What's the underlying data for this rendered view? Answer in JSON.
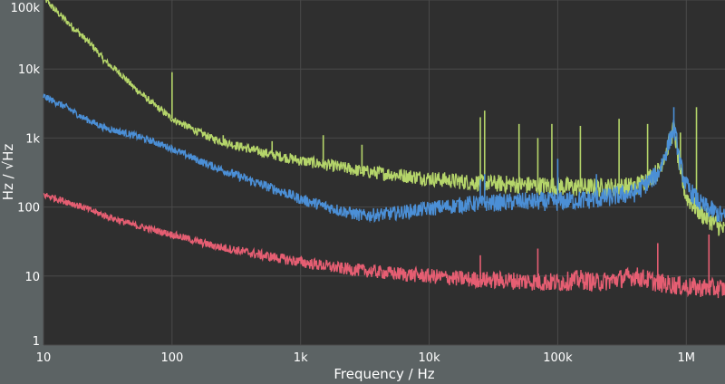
{
  "colors": {
    "page_background": "#5c6364",
    "plot_background": "#2f2f2f",
    "gridline": "#4a4a4a",
    "text": "#ffffff"
  },
  "chart_data": {
    "type": "line",
    "title": "",
    "xlabel": "Frequency / Hz",
    "ylabel": "Hz / √Hz",
    "xscale": "log",
    "yscale": "log",
    "xlim": [
      10,
      2000000
    ],
    "ylim": [
      1,
      100000
    ],
    "grid": true,
    "legend": "none",
    "x_ticks": [
      {
        "value": 10,
        "label": "10"
      },
      {
        "value": 100,
        "label": "100"
      },
      {
        "value": 1000,
        "label": "1k"
      },
      {
        "value": 10000,
        "label": "10k"
      },
      {
        "value": 100000,
        "label": "100k"
      },
      {
        "value": 1000000,
        "label": "1M"
      }
    ],
    "y_ticks": [
      {
        "value": 1,
        "label": "1"
      },
      {
        "value": 10,
        "label": "10"
      },
      {
        "value": 100,
        "label": "100"
      },
      {
        "value": 1000,
        "label": "1k"
      },
      {
        "value": 10000,
        "label": "10k"
      },
      {
        "value": 100000,
        "label": "100k"
      }
    ],
    "series": [
      {
        "color": "#b5d56a",
        "points": [
          [
            10,
            110000
          ],
          [
            12,
            75000
          ],
          [
            15,
            50000
          ],
          [
            20,
            30000
          ],
          [
            25,
            20000
          ],
          [
            30,
            13000
          ],
          [
            40,
            8500
          ],
          [
            50,
            5500
          ],
          [
            70,
            3200
          ],
          [
            100,
            1900
          ],
          [
            150,
            1300
          ],
          [
            200,
            1000
          ],
          [
            300,
            800
          ],
          [
            500,
            620
          ],
          [
            1000,
            470
          ],
          [
            2000,
            380
          ],
          [
            3000,
            330
          ],
          [
            5000,
            300
          ],
          [
            10000,
            260
          ],
          [
            20000,
            230
          ],
          [
            50000,
            210
          ],
          [
            100000,
            200
          ],
          [
            200000,
            190
          ],
          [
            400000,
            200
          ],
          [
            600000,
            320
          ],
          [
            700000,
            650
          ],
          [
            800000,
            1400
          ],
          [
            850000,
            650
          ],
          [
            900000,
            300
          ],
          [
            1000000,
            140
          ],
          [
            1300000,
            80
          ],
          [
            2000000,
            45
          ]
        ],
        "spikes": [
          [
            100,
            9000
          ],
          [
            250,
            1100
          ],
          [
            600,
            900
          ],
          [
            1500,
            1100
          ],
          [
            3000,
            800
          ],
          [
            25000,
            2000
          ],
          [
            27000,
            2500
          ],
          [
            50000,
            1600
          ],
          [
            70000,
            1000
          ],
          [
            90000,
            1600
          ],
          [
            150000,
            1500
          ],
          [
            300000,
            1900
          ],
          [
            500000,
            1600
          ],
          [
            900000,
            1200
          ],
          [
            1200000,
            2800
          ]
        ]
      },
      {
        "color": "#4b8fd6",
        "points": [
          [
            10,
            4000
          ],
          [
            15,
            2800
          ],
          [
            20,
            2000
          ],
          [
            30,
            1400
          ],
          [
            50,
            1100
          ],
          [
            70,
            900
          ],
          [
            100,
            700
          ],
          [
            150,
            500
          ],
          [
            200,
            400
          ],
          [
            300,
            300
          ],
          [
            500,
            210
          ],
          [
            700,
            170
          ],
          [
            1000,
            130
          ],
          [
            2000,
            90
          ],
          [
            3000,
            75
          ],
          [
            5000,
            80
          ],
          [
            10000,
            95
          ],
          [
            20000,
            110
          ],
          [
            50000,
            120
          ],
          [
            100000,
            120
          ],
          [
            200000,
            130
          ],
          [
            400000,
            160
          ],
          [
            600000,
            300
          ],
          [
            700000,
            650
          ],
          [
            800000,
            1400
          ],
          [
            850000,
            800
          ],
          [
            900000,
            400
          ],
          [
            1000000,
            200
          ],
          [
            1300000,
            110
          ],
          [
            2000000,
            70
          ]
        ],
        "spikes": [
          [
            25000,
            250
          ],
          [
            27000,
            300
          ],
          [
            100000,
            500
          ],
          [
            200000,
            300
          ],
          [
            800000,
            2800
          ]
        ]
      },
      {
        "color": "#e55e72",
        "points": [
          [
            10,
            150
          ],
          [
            15,
            120
          ],
          [
            20,
            100
          ],
          [
            30,
            75
          ],
          [
            50,
            55
          ],
          [
            100,
            40
          ],
          [
            200,
            28
          ],
          [
            500,
            20
          ],
          [
            1000,
            16
          ],
          [
            2000,
            13
          ],
          [
            5000,
            11
          ],
          [
            10000,
            10
          ],
          [
            20000,
            9
          ],
          [
            50000,
            8.5
          ],
          [
            100000,
            8
          ],
          [
            150000,
            9
          ],
          [
            200000,
            8
          ],
          [
            400000,
            10
          ],
          [
            600000,
            8
          ],
          [
            1000000,
            7
          ],
          [
            2000000,
            6.5
          ]
        ],
        "spikes": [
          [
            25000,
            20
          ],
          [
            70000,
            25
          ],
          [
            600000,
            30
          ],
          [
            1500000,
            40
          ]
        ]
      }
    ]
  }
}
